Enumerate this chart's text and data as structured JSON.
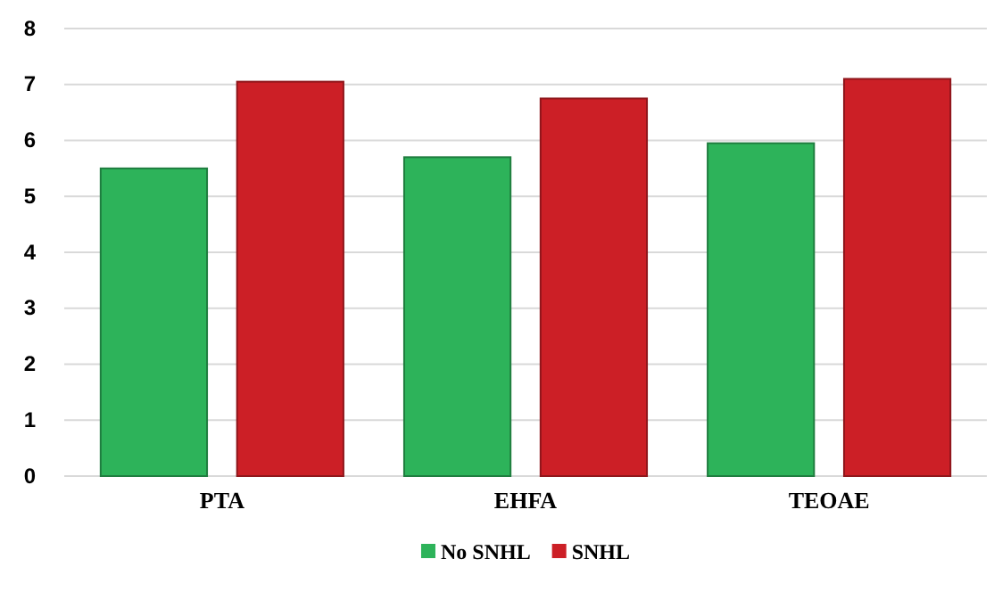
{
  "chart_data": {
    "type": "bar",
    "categories": [
      "PTA",
      "EHFA",
      "TEOAE"
    ],
    "series": [
      {
        "name": "No SNHL",
        "color": "#2db35a",
        "values": [
          5.5,
          5.7,
          5.95
        ]
      },
      {
        "name": "SNHL",
        "color": "#cc1f26",
        "values": [
          7.05,
          6.75,
          7.1
        ]
      }
    ],
    "ylim": [
      0,
      8
    ],
    "yticks": [
      0,
      1,
      2,
      3,
      4,
      5,
      6,
      7,
      8
    ],
    "grid": "y",
    "legend": "bottom"
  }
}
